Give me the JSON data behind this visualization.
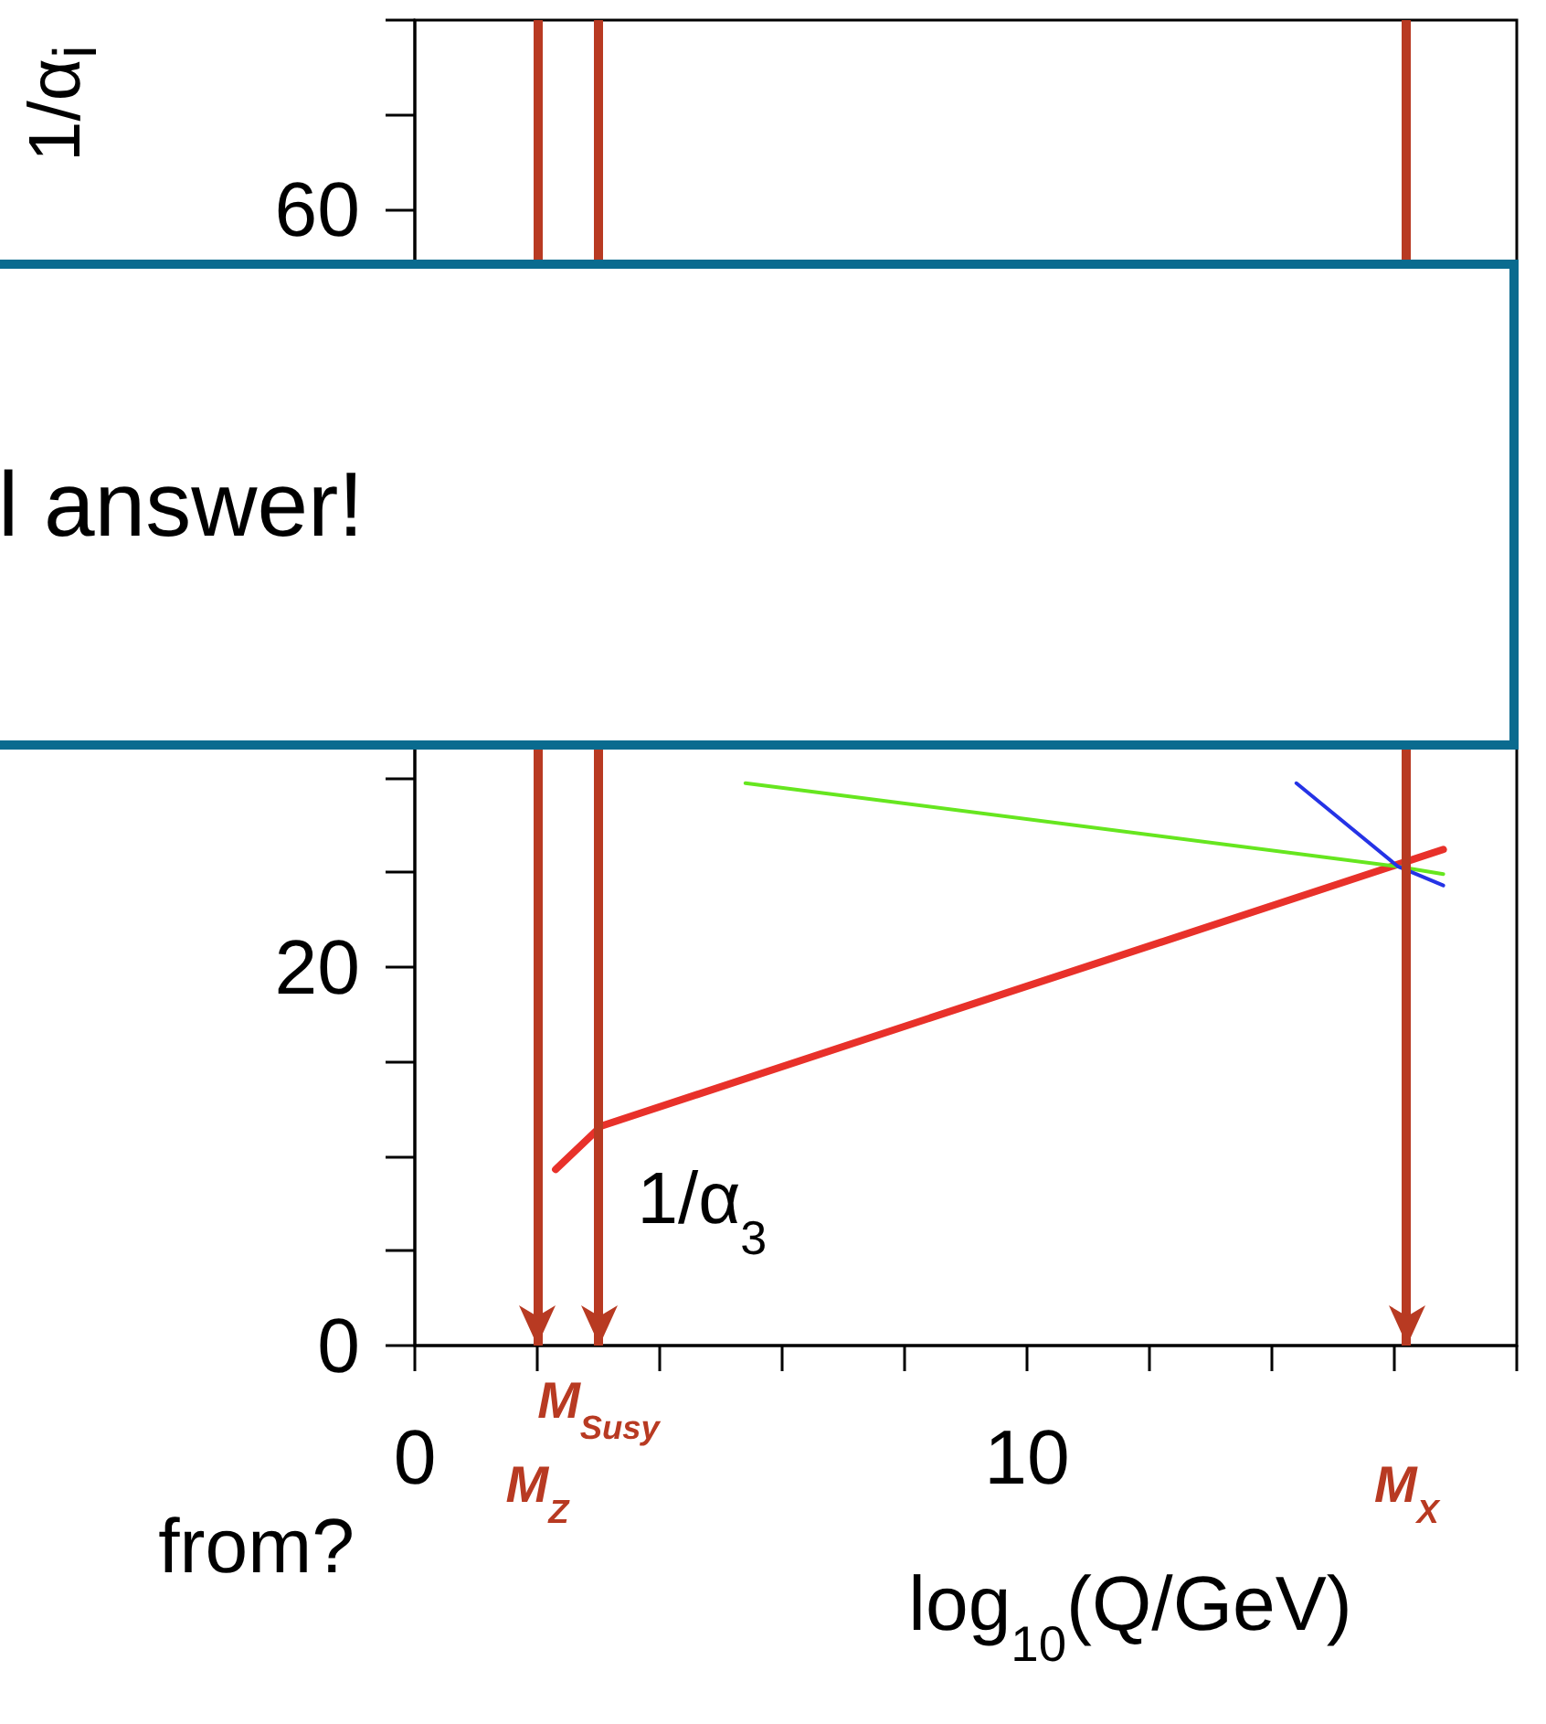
{
  "chart_data": {
    "type": "line",
    "ylabel": "1/α$_{i}$",
    "xlabel": "log$_{10}$(Q/GeV)",
    "xlim": [
      0,
      18
    ],
    "xticks": [
      0,
      {
        "value": 2,
        "label": null
      },
      {
        "value": 4,
        "label": null
      },
      {
        "value": 6,
        "label": null
      },
      {
        "value": 8,
        "label": null
      },
      10,
      {
        "value": 12,
        "label": null
      },
      {
        "value": 14,
        "label": null
      },
      {
        "value": 16,
        "label": null
      },
      {
        "value": 18,
        "label": null
      }
    ],
    "ylim": [
      0,
      70
    ],
    "yticks": [
      0,
      {
        "value": 5,
        "label": null
      },
      {
        "value": 10,
        "label": null
      },
      {
        "value": 15,
        "label": null
      },
      20,
      {
        "value": 25,
        "label": null
      },
      60,
      {
        "value": 65,
        "label": null
      }
    ],
    "grid": false,
    "legend": false,
    "marker": "none",
    "line_style": "solid",
    "series": [
      {
        "name": "1/α$_{3}$",
        "color": "#e8312a",
        "x": [
          2.3,
          3.05,
          16.8
        ],
        "values": [
          9.3,
          11.6,
          26.2
        ]
      },
      {
        "color": "#66e61f",
        "x": [
          5.4,
          16.06,
          16.8
        ],
        "values": [
          29.7,
          25.3,
          24.9
        ]
      },
      {
        "color": "#2533e6",
        "x": [
          14.4,
          16.06,
          16.8
        ],
        "values": [
          29.7,
          25.3,
          24.3
        ]
      }
    ],
    "ref_lines": [
      {
        "axis": "x",
        "value": 2,
        "label": "M$_{Z}$",
        "color": "#b83a22"
      },
      {
        "axis": "x",
        "value": 3,
        "label": "M$_{Susy}$",
        "color": "#b83a22"
      },
      {
        "axis": "x",
        "value": 16.2,
        "label": "M$_{X}$",
        "color": "#b83a22"
      }
    ],
    "annotations": [
      "l answer!",
      "from?"
    ]
  }
}
